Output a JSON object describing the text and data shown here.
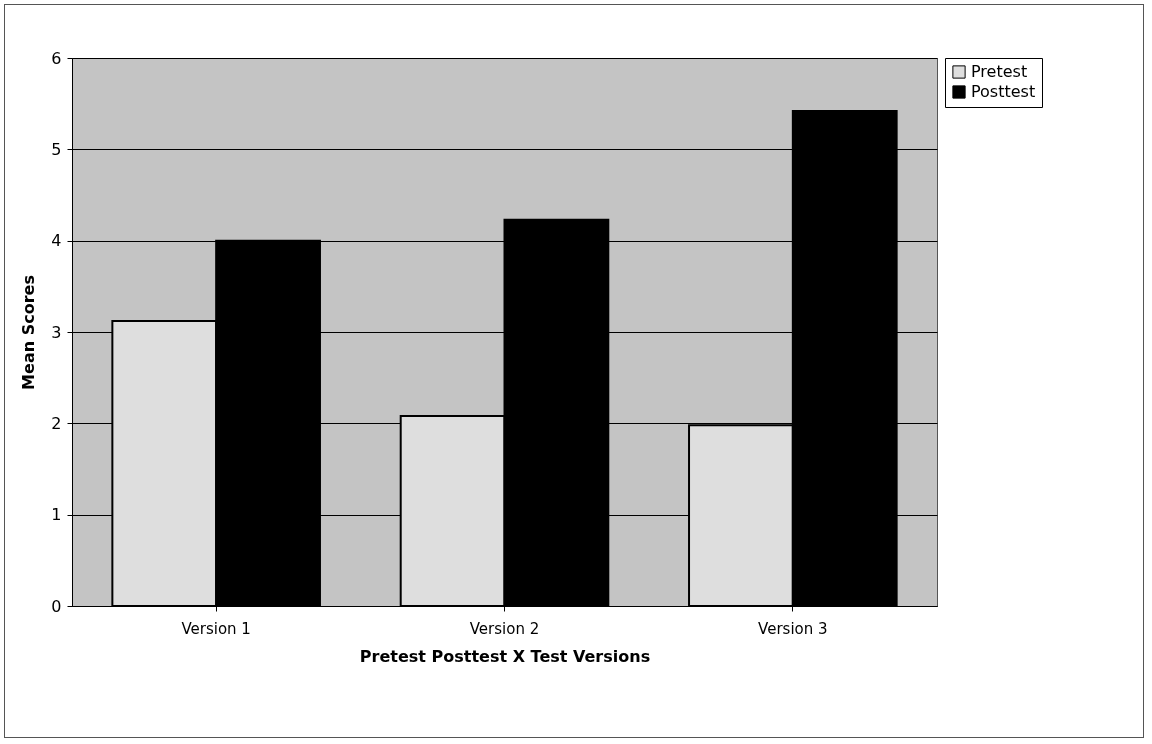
{
  "chart_data": {
    "type": "bar",
    "xlabel": "Pretest  Posttest  X  Test  Versions",
    "ylabel": "Mean  Scores",
    "categories": [
      "Version 1",
      "Version 2",
      "Version 3"
    ],
    "series": [
      {
        "name": "Pretest",
        "color": "#dedede",
        "values": [
          3.12,
          2.08,
          1.98
        ]
      },
      {
        "name": "Posttest",
        "color": "#000000",
        "values": [
          4.0,
          4.23,
          5.42
        ]
      }
    ],
    "ylim": [
      0,
      6
    ],
    "yticks": [
      0,
      1,
      2,
      3,
      4,
      5,
      6
    ],
    "grid": "y",
    "legend": "right"
  }
}
